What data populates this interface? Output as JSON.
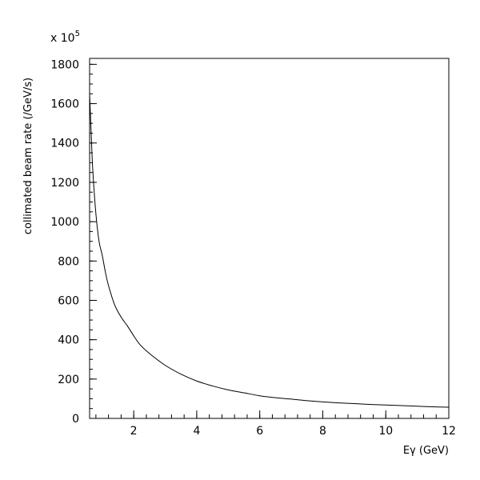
{
  "chart_data": {
    "type": "line",
    "xlabel": "Eγ (GeV)",
    "ylabel": "collimated beam rate (/GeV/s)",
    "y_multiplier_label": "x 10",
    "y_multiplier_exponent": "5",
    "xlim": [
      0.6,
      12
    ],
    "ylim": [
      0,
      1830
    ],
    "x_ticks": [
      2,
      4,
      6,
      8,
      10,
      12
    ],
    "x_tick_labels": [
      "2",
      "4",
      "6",
      "8",
      "10",
      "12"
    ],
    "y_ticks": [
      0,
      200,
      400,
      600,
      800,
      1000,
      1200,
      1400,
      1600,
      1800
    ],
    "y_tick_labels": [
      "0",
      "200",
      "400",
      "600",
      "800",
      "1000",
      "1200",
      "1400",
      "1600",
      "1800"
    ],
    "grid": false,
    "series": [
      {
        "x": [
          0.6,
          0.65,
          0.7,
          0.8,
          0.9,
          1.0,
          1.1,
          1.2,
          1.4,
          1.6,
          1.8,
          2.0,
          2.2,
          2.5,
          3.0,
          3.5,
          4.0,
          4.5,
          5.0,
          5.5,
          6.0,
          6.5,
          7.0,
          7.5,
          8.0,
          8.5,
          9.0,
          9.5,
          10.0,
          10.5,
          11.0,
          11.5,
          12.0
        ],
        "y": [
          1650,
          1450,
          1265,
          1040,
          900,
          830,
          745,
          675,
          575,
          515,
          470,
          420,
          375,
          330,
          270,
          225,
          190,
          165,
          145,
          130,
          115,
          105,
          98,
          90,
          84,
          79,
          75,
          71,
          68,
          65,
          62,
          59,
          57
        ]
      }
    ]
  }
}
